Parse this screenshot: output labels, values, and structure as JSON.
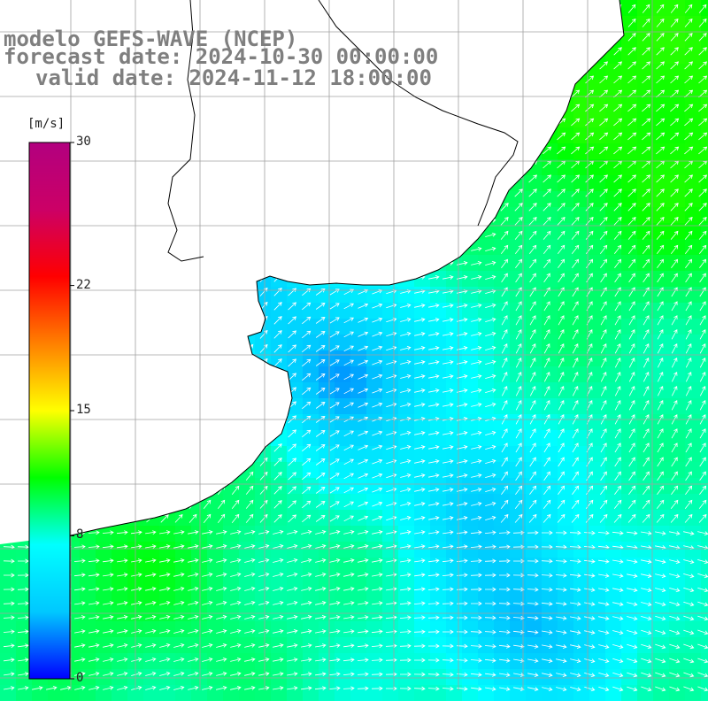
{
  "title": {
    "line1": "modelo GEFS-WAVE (NCEP)",
    "line2": "forecast date: 2024-10-30 00:00:00",
    "line3": "valid date: 2024-11-12 18:00:00"
  },
  "colorbar": {
    "units": "[m/s]",
    "ticks": [
      {
        "value": 30,
        "label": "30"
      },
      {
        "value": 22,
        "label": "22"
      },
      {
        "value": 15,
        "label": "15"
      },
      {
        "value": 8,
        "label": "8"
      },
      {
        "value": 0,
        "label": "0"
      }
    ],
    "range": [
      0,
      30
    ],
    "colors": [
      "#0000ff",
      "#00c8ff",
      "#00ffff",
      "#00ff00",
      "#ffff00",
      "#ff8000",
      "#ff0000",
      "#cc0066",
      "#b2007f"
    ]
  },
  "map": {
    "variable": "wind speed and direction",
    "grid": true,
    "land_color": "#ffffff",
    "coastline_color": "#000000",
    "grid_color": "#a0a0a0"
  }
}
